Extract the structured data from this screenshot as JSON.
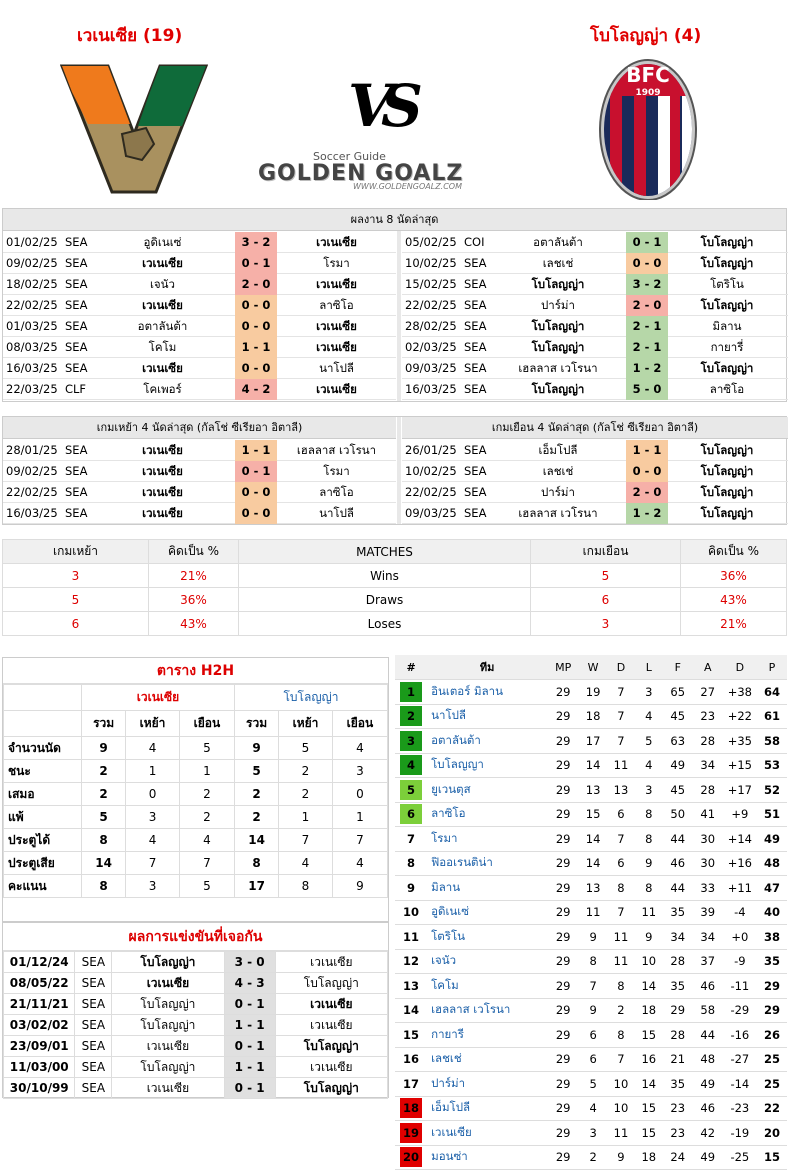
{
  "header": {
    "home_title": "เวเนเซีย (19)",
    "away_title": "โบโลญญ่า (4)",
    "vs": "VS",
    "brand_small": "Soccer Guide",
    "brand_big": "GOLDEN GOALZ",
    "brand_url": "WWW.GOLDENGOALZ.COM",
    "bfc_text": "BFC",
    "bfc_year": "1909"
  },
  "last8": {
    "title": "ผลงาน 8 นัดล่าสุด",
    "home": [
      {
        "date": "01/02/25",
        "lg": "SEA",
        "h": "อูดิเนเซ่",
        "s": "3 - 2",
        "a": "เวเนเซีย",
        "r": "lose",
        "hb": false,
        "ab": true
      },
      {
        "date": "09/02/25",
        "lg": "SEA",
        "h": "เวเนเซีย",
        "s": "0 - 1",
        "a": "โรมา",
        "r": "lose",
        "hb": true,
        "ab": false
      },
      {
        "date": "18/02/25",
        "lg": "SEA",
        "h": "เจนัว",
        "s": "2 - 0",
        "a": "เวเนเซีย",
        "r": "lose",
        "hb": false,
        "ab": true
      },
      {
        "date": "22/02/25",
        "lg": "SEA",
        "h": "เวเนเซีย",
        "s": "0 - 0",
        "a": "ลาซิโอ",
        "r": "draw",
        "hb": true,
        "ab": false
      },
      {
        "date": "01/03/25",
        "lg": "SEA",
        "h": "อตาลันต้า",
        "s": "0 - 0",
        "a": "เวเนเซีย",
        "r": "draw",
        "hb": false,
        "ab": true
      },
      {
        "date": "08/03/25",
        "lg": "SEA",
        "h": "โคโม",
        "s": "1 - 1",
        "a": "เวเนเซีย",
        "r": "draw",
        "hb": false,
        "ab": true
      },
      {
        "date": "16/03/25",
        "lg": "SEA",
        "h": "เวเนเซีย",
        "s": "0 - 0",
        "a": "นาโปลี",
        "r": "draw",
        "hb": true,
        "ab": false
      },
      {
        "date": "22/03/25",
        "lg": "CLF",
        "h": "โคเพอร์",
        "s": "4 - 2",
        "a": "เวเนเซีย",
        "r": "lose",
        "hb": false,
        "ab": true
      }
    ],
    "away": [
      {
        "date": "05/02/25",
        "lg": "COI",
        "h": "อตาลันต้า",
        "s": "0 - 1",
        "a": "โบโลญญ่า",
        "r": "win",
        "hb": false,
        "ab": true
      },
      {
        "date": "10/02/25",
        "lg": "SEA",
        "h": "เลชเช่",
        "s": "0 - 0",
        "a": "โบโลญญ่า",
        "r": "draw",
        "hb": false,
        "ab": true
      },
      {
        "date": "15/02/25",
        "lg": "SEA",
        "h": "โบโลญญ่า",
        "s": "3 - 2",
        "a": "โตริโน",
        "r": "win",
        "hb": true,
        "ab": false
      },
      {
        "date": "22/02/25",
        "lg": "SEA",
        "h": "ปาร์ม่า",
        "s": "2 - 0",
        "a": "โบโลญญ่า",
        "r": "lose",
        "hb": false,
        "ab": true
      },
      {
        "date": "28/02/25",
        "lg": "SEA",
        "h": "โบโลญญ่า",
        "s": "2 - 1",
        "a": "มิลาน",
        "r": "win",
        "hb": true,
        "ab": false
      },
      {
        "date": "02/03/25",
        "lg": "SEA",
        "h": "โบโลญญ่า",
        "s": "2 - 1",
        "a": "กายารี่",
        "r": "win",
        "hb": true,
        "ab": false
      },
      {
        "date": "09/03/25",
        "lg": "SEA",
        "h": "เฮลลาส เวโรนา",
        "s": "1 - 2",
        "a": "โบโลญญ่า",
        "r": "win",
        "hb": false,
        "ab": true
      },
      {
        "date": "16/03/25",
        "lg": "SEA",
        "h": "โบโลญญ่า",
        "s": "5 - 0",
        "a": "ลาซิโอ",
        "r": "win",
        "hb": true,
        "ab": false
      }
    ]
  },
  "last4": {
    "home_title": "เกมเหย้า 4 นัดล่าสุด (กัลโช่ ซีเรียอา อิตาลี)",
    "away_title": "เกมเยือน 4 นัดล่าสุด (กัลโช่ ซีเรียอา อิตาลี)",
    "home": [
      {
        "date": "28/01/25",
        "lg": "SEA",
        "h": "เวเนเซีย",
        "s": "1 - 1",
        "a": "เฮลลาส เวโรนา",
        "r": "draw",
        "hb": true,
        "ab": false
      },
      {
        "date": "09/02/25",
        "lg": "SEA",
        "h": "เวเนเซีย",
        "s": "0 - 1",
        "a": "โรมา",
        "r": "lose",
        "hb": true,
        "ab": false
      },
      {
        "date": "22/02/25",
        "lg": "SEA",
        "h": "เวเนเซีย",
        "s": "0 - 0",
        "a": "ลาซิโอ",
        "r": "draw",
        "hb": true,
        "ab": false
      },
      {
        "date": "16/03/25",
        "lg": "SEA",
        "h": "เวเนเซีย",
        "s": "0 - 0",
        "a": "นาโปลี",
        "r": "draw",
        "hb": true,
        "ab": false
      }
    ],
    "away": [
      {
        "date": "26/01/25",
        "lg": "SEA",
        "h": "เอ็มโปลี",
        "s": "1 - 1",
        "a": "โบโลญญ่า",
        "r": "draw",
        "hb": false,
        "ab": true
      },
      {
        "date": "10/02/25",
        "lg": "SEA",
        "h": "เลชเช่",
        "s": "0 - 0",
        "a": "โบโลญญ่า",
        "r": "draw",
        "hb": false,
        "ab": true
      },
      {
        "date": "22/02/25",
        "lg": "SEA",
        "h": "ปาร์ม่า",
        "s": "2 - 0",
        "a": "โบโลญญ่า",
        "r": "lose",
        "hb": false,
        "ab": true
      },
      {
        "date": "09/03/25",
        "lg": "SEA",
        "h": "เฮลลาส เวโรนา",
        "s": "1 - 2",
        "a": "โบโลญญ่า",
        "r": "win",
        "hb": false,
        "ab": true
      }
    ]
  },
  "stats": {
    "h1": "เกมเหย้า",
    "h2": "คิดเป็น %",
    "h3": "MATCHES",
    "h4": "เกมเยือน",
    "h5": "คิดเป็น %",
    "rows": [
      {
        "hv": "3",
        "hp": "21%",
        "label": "Wins",
        "av": "5",
        "ap": "36%"
      },
      {
        "hv": "5",
        "hp": "36%",
        "label": "Draws",
        "av": "6",
        "ap": "43%"
      },
      {
        "hv": "6",
        "hp": "43%",
        "label": "Loses",
        "av": "3",
        "ap": "21%"
      }
    ]
  },
  "h2h": {
    "title": "ตาราง H2H",
    "home": "เวเนเซีย",
    "away": "โบโลญญ่า",
    "cols": [
      "รวม",
      "เหย้า",
      "เยือน",
      "รวม",
      "เหย้า",
      "เยือน"
    ],
    "rows": [
      {
        "label": "จำนวนนัด",
        "v": [
          "9",
          "4",
          "5",
          "9",
          "5",
          "4"
        ]
      },
      {
        "label": "ชนะ",
        "v": [
          "2",
          "1",
          "1",
          "5",
          "2",
          "3"
        ]
      },
      {
        "label": "เสมอ",
        "v": [
          "2",
          "0",
          "2",
          "2",
          "2",
          "0"
        ]
      },
      {
        "label": "แพ้",
        "v": [
          "5",
          "3",
          "2",
          "2",
          "1",
          "1"
        ]
      },
      {
        "label": "ประตูได้",
        "v": [
          "8",
          "4",
          "4",
          "14",
          "7",
          "7"
        ]
      },
      {
        "label": "ประตูเสีย",
        "v": [
          "14",
          "7",
          "7",
          "8",
          "4",
          "4"
        ]
      },
      {
        "label": "คะแนน",
        "v": [
          "8",
          "3",
          "5",
          "17",
          "8",
          "9"
        ]
      }
    ]
  },
  "results": {
    "title": "ผลการแข่งขันที่เจอกัน",
    "rows": [
      {
        "date": "01/12/24",
        "lg": "SEA",
        "h": "โบโลญญ่า",
        "s": "3 - 0",
        "a": "เวเนเซีย",
        "hb": true,
        "ab": false
      },
      {
        "date": "08/05/22",
        "lg": "SEA",
        "h": "เวเนเซีย",
        "s": "4 - 3",
        "a": "โบโลญญ่า",
        "hb": true,
        "ab": false
      },
      {
        "date": "21/11/21",
        "lg": "SEA",
        "h": "โบโลญญ่า",
        "s": "0 - 1",
        "a": "เวเนเซีย",
        "hb": false,
        "ab": true
      },
      {
        "date": "03/02/02",
        "lg": "SEA",
        "h": "โบโลญญ่า",
        "s": "1 - 1",
        "a": "เวเนเซีย",
        "hb": false,
        "ab": false
      },
      {
        "date": "23/09/01",
        "lg": "SEA",
        "h": "เวเนเซีย",
        "s": "0 - 1",
        "a": "โบโลญญ่า",
        "hb": false,
        "ab": true
      },
      {
        "date": "11/03/00",
        "lg": "SEA",
        "h": "โบโลญญ่า",
        "s": "1 - 1",
        "a": "เวเนเซีย",
        "hb": false,
        "ab": false
      },
      {
        "date": "30/10/99",
        "lg": "SEA",
        "h": "เวเนเซีย",
        "s": "0 - 1",
        "a": "โบโลญญ่า",
        "hb": false,
        "ab": true
      }
    ]
  },
  "league": {
    "cols": [
      "#",
      "ทีม",
      "MP",
      "W",
      "D",
      "L",
      "F",
      "A",
      "D",
      "P"
    ],
    "rows": [
      {
        "pos": "1",
        "team": "อินเตอร์ มิลาน",
        "mp": "29",
        "w": "19",
        "d": "7",
        "l": "3",
        "f": "65",
        "a": "27",
        "gd": "+38",
        "p": "64",
        "zone": "#1a9a1a"
      },
      {
        "pos": "2",
        "team": "นาโปลี",
        "mp": "29",
        "w": "18",
        "d": "7",
        "l": "4",
        "f": "45",
        "a": "23",
        "gd": "+22",
        "p": "61",
        "zone": "#1a9a1a"
      },
      {
        "pos": "3",
        "team": "อตาลันต้า",
        "mp": "29",
        "w": "17",
        "d": "7",
        "l": "5",
        "f": "63",
        "a": "28",
        "gd": "+35",
        "p": "58",
        "zone": "#1a9a1a"
      },
      {
        "pos": "4",
        "team": "โบโลญญา",
        "mp": "29",
        "w": "14",
        "d": "11",
        "l": "4",
        "f": "49",
        "a": "34",
        "gd": "+15",
        "p": "53",
        "zone": "#1a9a1a"
      },
      {
        "pos": "5",
        "team": "ยูเวนตุส",
        "mp": "29",
        "w": "13",
        "d": "13",
        "l": "3",
        "f": "45",
        "a": "28",
        "gd": "+17",
        "p": "52",
        "zone": "#7ccf3a"
      },
      {
        "pos": "6",
        "team": "ลาซิโอ",
        "mp": "29",
        "w": "15",
        "d": "6",
        "l": "8",
        "f": "50",
        "a": "41",
        "gd": "+9",
        "p": "51",
        "zone": "#7ccf3a"
      },
      {
        "pos": "7",
        "team": "โรมา",
        "mp": "29",
        "w": "14",
        "d": "7",
        "l": "8",
        "f": "44",
        "a": "30",
        "gd": "+14",
        "p": "49",
        "zone": ""
      },
      {
        "pos": "8",
        "team": "ฟิออเรนติน่า",
        "mp": "29",
        "w": "14",
        "d": "6",
        "l": "9",
        "f": "46",
        "a": "30",
        "gd": "+16",
        "p": "48",
        "zone": ""
      },
      {
        "pos": "9",
        "team": "มิลาน",
        "mp": "29",
        "w": "13",
        "d": "8",
        "l": "8",
        "f": "44",
        "a": "33",
        "gd": "+11",
        "p": "47",
        "zone": ""
      },
      {
        "pos": "10",
        "team": "อูดิเนเซ่",
        "mp": "29",
        "w": "11",
        "d": "7",
        "l": "11",
        "f": "35",
        "a": "39",
        "gd": "-4",
        "p": "40",
        "zone": ""
      },
      {
        "pos": "11",
        "team": "โตริโน",
        "mp": "29",
        "w": "9",
        "d": "11",
        "l": "9",
        "f": "34",
        "a": "34",
        "gd": "+0",
        "p": "38",
        "zone": ""
      },
      {
        "pos": "12",
        "team": "เจนัว",
        "mp": "29",
        "w": "8",
        "d": "11",
        "l": "10",
        "f": "28",
        "a": "37",
        "gd": "-9",
        "p": "35",
        "zone": ""
      },
      {
        "pos": "13",
        "team": "โคโม",
        "mp": "29",
        "w": "7",
        "d": "8",
        "l": "14",
        "f": "35",
        "a": "46",
        "gd": "-11",
        "p": "29",
        "zone": ""
      },
      {
        "pos": "14",
        "team": "เฮลลาส เวโรนา",
        "mp": "29",
        "w": "9",
        "d": "2",
        "l": "18",
        "f": "29",
        "a": "58",
        "gd": "-29",
        "p": "29",
        "zone": ""
      },
      {
        "pos": "15",
        "team": "กายารี",
        "mp": "29",
        "w": "6",
        "d": "8",
        "l": "15",
        "f": "28",
        "a": "44",
        "gd": "-16",
        "p": "26",
        "zone": ""
      },
      {
        "pos": "16",
        "team": "เลชเช่",
        "mp": "29",
        "w": "6",
        "d": "7",
        "l": "16",
        "f": "21",
        "a": "48",
        "gd": "-27",
        "p": "25",
        "zone": ""
      },
      {
        "pos": "17",
        "team": "ปาร์ม่า",
        "mp": "29",
        "w": "5",
        "d": "10",
        "l": "14",
        "f": "35",
        "a": "49",
        "gd": "-14",
        "p": "25",
        "zone": ""
      },
      {
        "pos": "18",
        "team": "เอ็มโปลี",
        "mp": "29",
        "w": "4",
        "d": "10",
        "l": "15",
        "f": "23",
        "a": "46",
        "gd": "-23",
        "p": "22",
        "zone": "#e00000"
      },
      {
        "pos": "19",
        "team": "เวเนเซีย",
        "mp": "29",
        "w": "3",
        "d": "11",
        "l": "15",
        "f": "23",
        "a": "42",
        "gd": "-19",
        "p": "20",
        "zone": "#e00000"
      },
      {
        "pos": "20",
        "team": "มอนซ่า",
        "mp": "29",
        "w": "2",
        "d": "9",
        "l": "18",
        "f": "24",
        "a": "49",
        "gd": "-25",
        "p": "15",
        "zone": "#e00000"
      }
    ]
  }
}
